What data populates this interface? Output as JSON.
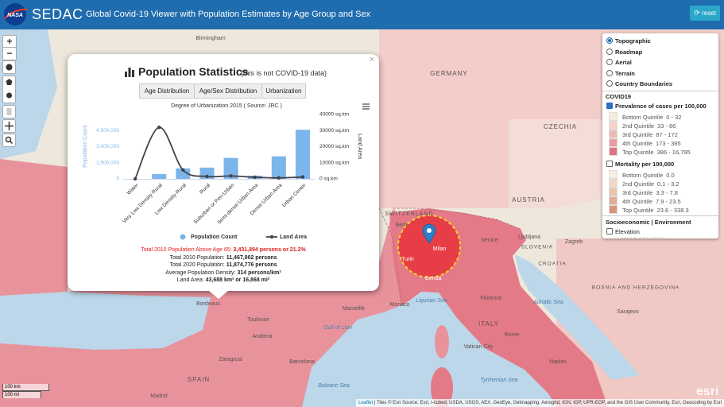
{
  "header": {
    "logo": "NASA",
    "brand": "SEDAC",
    "title": "Global Covid-19 Viewer with Population Estimates by Age Group and Sex",
    "reset": "reset"
  },
  "map": {
    "zoom_in": "+",
    "zoom_out": "−",
    "labels": [
      "Birmingham",
      "GERMANY",
      "CZECHIA",
      "AUSTRIA",
      "SWITZERLAND",
      "Bern",
      "Milan",
      "Turin",
      "Genoa",
      "Monaco",
      "Ligurian Sea",
      "Florence",
      "ITALY",
      "Rome",
      "Vatican City",
      "Naples",
      "Adriatic Sea",
      "Tyrrhenian Sea",
      "Venice",
      "Ljubljana",
      "SLOVENIA",
      "Zagreb",
      "CROATIA",
      "BOSNIA AND HERZEGOVINA",
      "Sarajevo",
      "Marseille",
      "Gulf of Lion",
      "Andorra",
      "Barcelona",
      "Zaragoza",
      "SPAIN",
      "Bordeaux",
      "Toulouse",
      "Balearic Sea",
      "Madrid"
    ],
    "scale_km": "100 km",
    "scale_mi": "100 mi",
    "attribution_link": "Leaflet",
    "attribution": "| Tiles © Esri Source: Esri, i-cubed, USDA, USGS, AEX, GeoEye, Getmapping, Aerogrid, IGN, IGP, UPR-EGP, and the GIS User Community, Esri, Geocoding by Esri",
    "esri": "esri"
  },
  "layers": {
    "basemaps": [
      "Topographic",
      "Roadmap",
      "Aerial",
      "Terrain",
      "Country Boundaries"
    ],
    "selected_basemap": 0,
    "covid_heading": "COVID19",
    "prevalence": {
      "title": "Prevalence of cases per 100,000",
      "checked": true,
      "legend": [
        {
          "label": "Bottom Quintile",
          "range": "0 - 32",
          "color": "#f6ecd9"
        },
        {
          "label": "2nd Quintile",
          "range": "33 - 86",
          "color": "#f1d4c4"
        },
        {
          "label": "3rd Quintile",
          "range": "87 - 172",
          "color": "#eebbb1"
        },
        {
          "label": "4th Quintile",
          "range": "173 - 385",
          "color": "#e99da0"
        },
        {
          "label": "Top Quintile",
          "range": "386 - 16,795",
          "color": "#e07485"
        }
      ]
    },
    "mortality": {
      "title": "Mortality per 100,000",
      "checked": false,
      "legend": [
        {
          "label": "Bottom Quintile",
          "range": "0.0",
          "color": "#f7ede2"
        },
        {
          "label": "2nd Quintile",
          "range": "0.1 - 3.2",
          "color": "#f1d8c8"
        },
        {
          "label": "3rd Quintile",
          "range": "3.3 - 7.8",
          "color": "#ebc2ac"
        },
        {
          "label": "4th Quintile",
          "range": "7.9 - 23.5",
          "color": "#e3ab93"
        },
        {
          "label": "Top Quintile",
          "range": "23.6 - 338.3",
          "color": "#d6937c"
        }
      ]
    },
    "socio_heading": "Socioeconomic | Environment",
    "elevation": "Elevation",
    "elevation_sub": "ABOVE SEA LEVEL"
  },
  "popup": {
    "title": "Population Statistics",
    "subtitle": "(this is not COVID-19 data)",
    "close": "×",
    "tabs": [
      "Age Distribution",
      "Age/Sex Distribution",
      "Urbanization"
    ],
    "stats": [
      {
        "label": "Total 2010 Population Above Age 65:",
        "value": "2,431,894 persons or 21.2%"
      },
      {
        "label": "Total 2010 Population:",
        "value": "11,467,902 persons"
      },
      {
        "label": "Total 2020 Population:",
        "value": "11,874,776 persons"
      },
      {
        "label": "Average Population Density:",
        "value": "314 persons/km²"
      },
      {
        "label": "Land Area:",
        "value": "43,688 km² or 16,868 mi²"
      }
    ]
  },
  "chart_data": {
    "type": "bar",
    "title": "Degree of Urbanization 2015 ( Source: JRC )",
    "y_label": "Population Count",
    "y2_label": "Land Area",
    "categories": [
      "Water",
      "Very Low Density Rural",
      "Low Density Rural",
      "Rural",
      "Suburban or Peri-Urban",
      "Semi-dense Urban Area",
      "Dense Urban Area",
      "Urban Center"
    ],
    "series": [
      {
        "name": "Population Count",
        "color": "#7cb5ec",
        "values": [
          0,
          450000,
          975000,
          1050000,
          1950000,
          300000,
          2100000,
          4575000
        ]
      },
      {
        "name": "Land Area",
        "color": "#434348",
        "type": "line",
        "axis": "y2",
        "values": [
          0,
          32000,
          5500,
          1500,
          1800,
          1000,
          600,
          1200
        ]
      }
    ],
    "ylim": [
      0,
      6000000
    ],
    "yticks": [
      0,
      {
        "value": 1500000,
        "label": "1,500,000"
      },
      {
        "value": 3000000,
        "label": "3,000,000"
      },
      {
        "value": 4500000,
        "label": "4,500,000"
      }
    ],
    "y2lim": [
      0,
      40000
    ],
    "y2ticks": [
      {
        "value": 0,
        "label": "0 sq.km"
      },
      {
        "value": 10000,
        "label": "10000 sq.km"
      },
      {
        "value": 20000,
        "label": "20000 sq.km"
      },
      {
        "value": 30000,
        "label": "30000 sq.km"
      },
      {
        "value": 40000,
        "label": "40000 sq.km"
      }
    ],
    "grid": false
  }
}
